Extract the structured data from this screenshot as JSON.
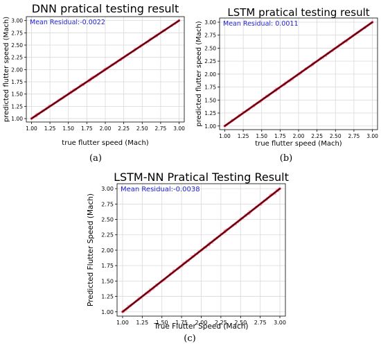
{
  "chart_data": [
    {
      "type": "scatter",
      "title": "DNN pratical testing result",
      "annotation": "Mean Residual:-0.0022",
      "xlabel": "true flutter speed (Mach)",
      "ylabel": "predicted flutter speed (Mach)",
      "xlim": [
        0.93,
        3.07
      ],
      "ylim": [
        0.93,
        3.08
      ],
      "xticks": [
        "1.00",
        "1.25",
        "1.50",
        "1.75",
        "2.00",
        "2.25",
        "2.50",
        "2.75",
        "3.00"
      ],
      "yticks": [
        "1.00",
        "1.25",
        "1.50",
        "1.75",
        "2.00",
        "2.25",
        "2.50",
        "2.75",
        "3.00"
      ],
      "grid": true,
      "caption": "(a)",
      "series": [
        {
          "points": "predictions",
          "x": [
            1.0,
            1.1,
            1.2,
            1.3,
            1.4,
            1.5,
            1.6,
            1.7,
            1.8,
            1.9,
            2.0,
            2.1,
            2.2,
            2.3,
            2.4,
            2.5,
            2.6,
            2.7,
            2.8,
            2.9,
            3.0
          ],
          "y": [
            1.0,
            1.1,
            1.2,
            1.3,
            1.4,
            1.5,
            1.6,
            1.7,
            1.8,
            1.9,
            2.0,
            2.1,
            2.2,
            2.3,
            2.4,
            2.5,
            2.6,
            2.7,
            2.8,
            2.9,
            3.0
          ]
        }
      ]
    },
    {
      "type": "scatter",
      "title": "LSTM pratical testing result",
      "annotation": "Mean Residual: 0.0011",
      "xlabel": "true flutter speed (Mach)",
      "ylabel": "predicted flutter speed (Mach)",
      "xlim": [
        0.93,
        3.07
      ],
      "ylim": [
        0.93,
        3.08
      ],
      "xticks": [
        "1.00",
        "1.25",
        "1.50",
        "1.75",
        "2.00",
        "2.25",
        "2.50",
        "2.75",
        "3.00"
      ],
      "yticks": [
        "1.00",
        "1.25",
        "1.50",
        "1.75",
        "2.00",
        "2.25",
        "2.50",
        "2.75",
        "3.00"
      ],
      "grid": true,
      "caption": "(b)",
      "series": [
        {
          "x": [
            1.0,
            1.1,
            1.2,
            1.3,
            1.4,
            1.5,
            1.6,
            1.7,
            1.8,
            1.9,
            2.0,
            2.1,
            2.2,
            2.3,
            2.4,
            2.5,
            2.6,
            2.7,
            2.8,
            2.9,
            3.0
          ],
          "y": [
            1.0,
            1.1,
            1.2,
            1.3,
            1.4,
            1.5,
            1.6,
            1.7,
            1.8,
            1.9,
            2.0,
            2.1,
            2.2,
            2.3,
            2.4,
            2.5,
            2.6,
            2.7,
            2.8,
            2.9,
            3.0
          ]
        }
      ]
    },
    {
      "type": "scatter",
      "title": "LSTM-NN Pratical Testing Result",
      "annotation": "Mean Residual:-0.0038",
      "xlabel": "True Flutter Speed (Mach)",
      "ylabel": "Predicted Flutter Speed (Mach)",
      "xlim": [
        0.93,
        3.07
      ],
      "ylim": [
        0.93,
        3.08
      ],
      "xticks": [
        "1.00",
        "1.25",
        "1.50",
        "1.75",
        "2.00",
        "2.25",
        "2.50",
        "2.75",
        "3.00"
      ],
      "yticks": [
        "1.00",
        "1.25",
        "1.50",
        "1.75",
        "2.00",
        "2.25",
        "2.50",
        "2.75",
        "3.00"
      ],
      "grid": true,
      "caption": "(c)",
      "series": [
        {
          "x": [
            1.0,
            1.1,
            1.2,
            1.3,
            1.4,
            1.5,
            1.6,
            1.7,
            1.8,
            1.9,
            2.0,
            2.1,
            2.2,
            2.3,
            2.4,
            2.5,
            2.6,
            2.7,
            2.8,
            2.9,
            3.0
          ],
          "y": [
            1.0,
            1.1,
            1.2,
            1.3,
            1.4,
            1.5,
            1.6,
            1.7,
            1.8,
            1.9,
            2.0,
            2.1,
            2.2,
            2.3,
            2.4,
            2.5,
            2.6,
            2.7,
            2.8,
            2.9,
            3.0
          ]
        }
      ]
    }
  ],
  "colors": {
    "points": "#c8102e",
    "fit_line": "#000000",
    "scatter_halo": "#f4a6b8",
    "annotation": "#1f1fd6",
    "grid": "#d9d9d9"
  }
}
